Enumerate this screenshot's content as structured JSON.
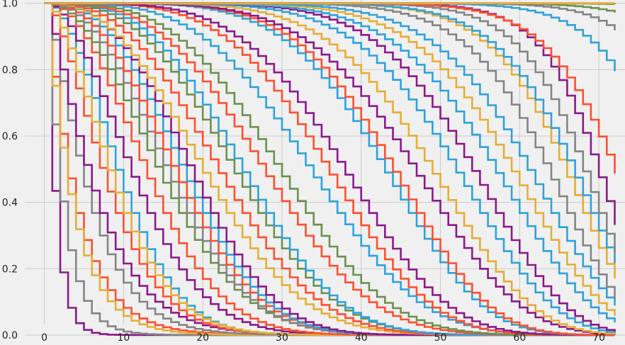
{
  "chart_data": {
    "type": "line",
    "step": "post",
    "title": "",
    "xlabel": "",
    "ylabel": "",
    "xlim": [
      -5.6,
      73.3
    ],
    "ylim": [
      -0.03,
      1.01
    ],
    "xticks": [
      0,
      10,
      20,
      30,
      40,
      50,
      60,
      70
    ],
    "yticks": [
      0.0,
      0.2,
      0.4,
      0.6,
      0.8,
      1.0
    ],
    "xtick_labels": [
      "0",
      "10",
      "20",
      "30",
      "40",
      "50",
      "60",
      "70"
    ],
    "ytick_labels": [
      "0.0",
      "0.2",
      "0.4",
      "0.6",
      "0.8",
      "1.0"
    ],
    "grid": true,
    "legend": "none",
    "background": "#f0f0f0",
    "x_range": [
      0,
      72
    ],
    "series": [
      {
        "color": "#8b1a89",
        "scale": 1.2,
        "shape": 1.0
      },
      {
        "color": "#858585",
        "scale": 2.2,
        "shape": 1.0
      },
      {
        "color": "#fc4f30",
        "scale": 4.0,
        "shape": 1.0
      },
      {
        "color": "#e5ae38",
        "scale": 3.5,
        "shape": 1.0
      },
      {
        "color": "#858585",
        "scale": 6.0,
        "shape": 1.2
      },
      {
        "color": "#8b1a89",
        "scale": 7.0,
        "shape": 1.2
      },
      {
        "color": "#fc4f30",
        "scale": 9.0,
        "shape": 1.5
      },
      {
        "color": "#30a2da",
        "scale": 11.0,
        "shape": 1.8
      },
      {
        "color": "#8b1a89",
        "scale": 13.0,
        "shape": 1.8
      },
      {
        "color": "#e5ae38",
        "scale": 10.0,
        "shape": 1.6
      },
      {
        "color": "#fc4f30",
        "scale": 15.0,
        "shape": 2.0
      },
      {
        "color": "#6d904f",
        "scale": 17.0,
        "shape": 2.0
      },
      {
        "color": "#858585",
        "scale": 18.0,
        "shape": 2.2
      },
      {
        "color": "#fc4f30",
        "scale": 19.0,
        "shape": 2.3
      },
      {
        "color": "#30a2da",
        "scale": 20.0,
        "shape": 2.5
      },
      {
        "color": "#8b1a89",
        "scale": 21.0,
        "shape": 2.6
      },
      {
        "color": "#e5ae38",
        "scale": 23.0,
        "shape": 2.4
      },
      {
        "color": "#fc4f30",
        "scale": 25.0,
        "shape": 2.6
      },
      {
        "color": "#6d904f",
        "scale": 27.0,
        "shape": 2.8
      },
      {
        "color": "#30a2da",
        "scale": 28.0,
        "shape": 3.0
      },
      {
        "color": "#fc4f30",
        "scale": 31.0,
        "shape": 3.0
      },
      {
        "color": "#6d904f",
        "scale": 33.0,
        "shape": 3.2
      },
      {
        "color": "#30a2da",
        "scale": 37.0,
        "shape": 3.5
      },
      {
        "color": "#fc4f30",
        "scale": 39.0,
        "shape": 4.0
      },
      {
        "color": "#8b1a89",
        "scale": 41.0,
        "shape": 4.2
      },
      {
        "color": "#30a2da",
        "scale": 46.0,
        "shape": 5.0
      },
      {
        "color": "#fc4f30",
        "scale": 47.0,
        "shape": 5.2
      },
      {
        "color": "#8b1a89",
        "scale": 50.0,
        "shape": 5.0
      },
      {
        "color": "#e5ae38",
        "scale": 52.0,
        "shape": 5.5
      },
      {
        "color": "#30a2da",
        "scale": 55.0,
        "shape": 6.0
      },
      {
        "color": "#8b1a89",
        "scale": 57.0,
        "shape": 6.5
      },
      {
        "color": "#30a2da",
        "scale": 60.0,
        "shape": 6.5
      },
      {
        "color": "#e5ae38",
        "scale": 62.0,
        "shape": 7.0
      },
      {
        "color": "#30a2da",
        "scale": 64.0,
        "shape": 7.5
      },
      {
        "color": "#858585",
        "scale": 66.0,
        "shape": 9.0
      },
      {
        "color": "#e5ae38",
        "scale": 68.0,
        "shape": 10.0
      },
      {
        "color": "#30a2da",
        "scale": 69.0,
        "shape": 10.0
      },
      {
        "color": "#858585",
        "scale": 70.0,
        "shape": 12.0
      },
      {
        "color": "#8b1a89",
        "scale": 71.5,
        "shape": 14.0
      },
      {
        "color": "#fc4f30",
        "scale": 74.0,
        "shape": 12.0
      },
      {
        "color": "#30a2da",
        "scale": 80.0,
        "shape": 14.0
      },
      {
        "color": "#858585",
        "scale": 84.0,
        "shape": 16.0
      },
      {
        "color": "#6d904f",
        "scale": 90.0,
        "shape": 16.0
      },
      {
        "color": "#6d904f",
        "scale": 100.0,
        "shape": 18.0
      },
      {
        "color": "#8b1a89",
        "scale": 120.0,
        "shape": 20.0
      },
      {
        "color": "#e5ae38",
        "scale": 140.0,
        "shape": 20.0
      }
    ]
  }
}
